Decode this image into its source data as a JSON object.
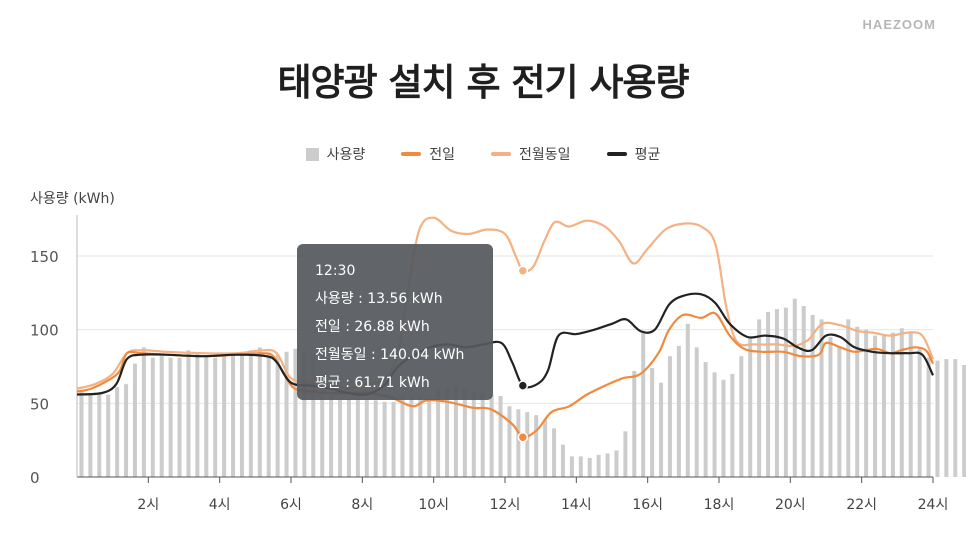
{
  "brand": "HAEZOOM",
  "colors": {
    "bar": "#cccccc",
    "yesterday": "#f08a3e",
    "last_month": "#f4b184",
    "average": "#222222",
    "grid": "#e6e6e6",
    "tooltip_bg": "#55585c"
  },
  "legend": [
    {
      "label": "사용량",
      "kind": "bar",
      "color": "#cccccc"
    },
    {
      "label": "전일",
      "kind": "line",
      "color": "#f08a3e"
    },
    {
      "label": "전월동일",
      "kind": "line",
      "color": "#f4b184"
    },
    {
      "label": "평균",
      "kind": "line",
      "color": "#222222"
    }
  ],
  "tooltip": {
    "time": "12:30",
    "usage": "사용량 : 13.56 kWh",
    "yesterday": "전일 : 26.88 kWh",
    "last_month": "전월동일 : 140.04 kWh",
    "average": "평균 : 61.71 kWh"
  },
  "chart_data": {
    "type": "bar",
    "title": "태양광 설치 후 전기 사용량",
    "ylabel": "사용량 (kWh)",
    "ylim": [
      0,
      175
    ],
    "y_ticks": [
      0,
      50,
      100,
      150
    ],
    "x_range": [
      0,
      24
    ],
    "x_ticks": [
      2,
      4,
      6,
      8,
      10,
      12,
      14,
      16,
      18,
      20,
      22,
      24
    ],
    "x_tick_labels": [
      "2시",
      "4시",
      "6시",
      "8시",
      "10시",
      "12시",
      "14시",
      "16시",
      "18시",
      "20시",
      "22시",
      "24시"
    ],
    "grid": true,
    "legend_position": "top-center",
    "bar_interval_hours": 0.25,
    "series": [
      {
        "name": "사용량",
        "type": "bar",
        "values": [
          58,
          57,
          56,
          56,
          61,
          63,
          77,
          88,
          81,
          82,
          81,
          81,
          86,
          84,
          82,
          81,
          82,
          83,
          85,
          86,
          88,
          84,
          83,
          85,
          87,
          85,
          83,
          62,
          55,
          53,
          53,
          53,
          53,
          52,
          51,
          51,
          56,
          55,
          54,
          53,
          60,
          61,
          62,
          60,
          58,
          57,
          56,
          55,
          48,
          46,
          44,
          42,
          39,
          33,
          22,
          14,
          14,
          13,
          15,
          16,
          18,
          31,
          72,
          98,
          74,
          64,
          82,
          89,
          104,
          88,
          78,
          71,
          66,
          70,
          82,
          95,
          107,
          112,
          114,
          115,
          121,
          116,
          110,
          107,
          95,
          88,
          107,
          102,
          100,
          96,
          96,
          98,
          101,
          99,
          88,
          81,
          79,
          80,
          80,
          76,
          90,
          86,
          87,
          85,
          87,
          86,
          88,
          90,
          91,
          89,
          89,
          85,
          84,
          82,
          78,
          76
        ]
      },
      {
        "name": "전일",
        "type": "line",
        "points": [
          [
            0,
            58
          ],
          [
            0.4,
            60
          ],
          [
            0.9,
            66
          ],
          [
            1.2,
            72
          ],
          [
            1.4,
            84
          ],
          [
            1.8,
            84
          ],
          [
            2.5,
            83
          ],
          [
            3.5,
            82
          ],
          [
            4.5,
            83
          ],
          [
            5.2,
            84
          ],
          [
            5.5,
            82
          ],
          [
            5.8,
            70
          ],
          [
            6.1,
            60
          ],
          [
            6.6,
            58
          ],
          [
            7.1,
            57
          ],
          [
            7.6,
            57
          ],
          [
            8.2,
            57
          ],
          [
            8.8,
            54
          ],
          [
            9.4,
            48
          ],
          [
            9.8,
            52
          ],
          [
            10.4,
            51
          ],
          [
            11.1,
            47
          ],
          [
            11.6,
            46
          ],
          [
            12.2,
            36
          ],
          [
            12.5,
            27
          ],
          [
            12.9,
            32
          ],
          [
            13.3,
            44
          ],
          [
            13.8,
            48
          ],
          [
            14.3,
            56
          ],
          [
            14.8,
            62
          ],
          [
            15.3,
            67
          ],
          [
            15.8,
            70
          ],
          [
            16.3,
            84
          ],
          [
            16.6,
            100
          ],
          [
            17.0,
            110
          ],
          [
            17.5,
            108
          ],
          [
            17.9,
            111
          ],
          [
            18.3,
            96
          ],
          [
            18.7,
            87
          ],
          [
            19.2,
            85
          ],
          [
            19.8,
            85
          ],
          [
            20.3,
            82
          ],
          [
            20.8,
            83
          ],
          [
            21.0,
            91
          ],
          [
            21.4,
            88
          ],
          [
            21.8,
            85
          ],
          [
            22.4,
            87
          ],
          [
            22.8,
            84
          ],
          [
            23.1,
            86
          ],
          [
            23.5,
            88
          ],
          [
            23.8,
            86
          ],
          [
            24,
            77
          ]
        ]
      },
      {
        "name": "전월동일",
        "type": "line",
        "points": [
          [
            0,
            60
          ],
          [
            0.5,
            63
          ],
          [
            1.0,
            70
          ],
          [
            1.4,
            84
          ],
          [
            1.8,
            86
          ],
          [
            2.5,
            85
          ],
          [
            3.5,
            84
          ],
          [
            4.5,
            84
          ],
          [
            5.2,
            86
          ],
          [
            5.6,
            84
          ],
          [
            6.0,
            67
          ],
          [
            6.6,
            64
          ],
          [
            7.1,
            62
          ],
          [
            7.6,
            60
          ],
          [
            8.1,
            63
          ],
          [
            8.6,
            66
          ],
          [
            9.0,
            84
          ],
          [
            9.3,
            130
          ],
          [
            9.6,
            168
          ],
          [
            10.0,
            176
          ],
          [
            10.5,
            167
          ],
          [
            11.0,
            165
          ],
          [
            11.5,
            168
          ],
          [
            12.0,
            165
          ],
          [
            12.3,
            150
          ],
          [
            12.5,
            140
          ],
          [
            12.8,
            143
          ],
          [
            13.1,
            160
          ],
          [
            13.4,
            173
          ],
          [
            13.8,
            170
          ],
          [
            14.3,
            174
          ],
          [
            14.8,
            170
          ],
          [
            15.2,
            160
          ],
          [
            15.6,
            145
          ],
          [
            16.0,
            155
          ],
          [
            16.5,
            168
          ],
          [
            17.0,
            172
          ],
          [
            17.5,
            170
          ],
          [
            17.9,
            158
          ],
          [
            18.2,
            116
          ],
          [
            18.5,
            92
          ],
          [
            19.0,
            90
          ],
          [
            19.6,
            90
          ],
          [
            20.1,
            89
          ],
          [
            20.5,
            93
          ],
          [
            20.9,
            104
          ],
          [
            21.4,
            103
          ],
          [
            21.9,
            99
          ],
          [
            22.3,
            98
          ],
          [
            22.8,
            96
          ],
          [
            23.3,
            98
          ],
          [
            23.7,
            96
          ],
          [
            24,
            80
          ]
        ]
      },
      {
        "name": "평균",
        "type": "line",
        "points": [
          [
            0,
            56
          ],
          [
            0.7,
            57
          ],
          [
            1.1,
            63
          ],
          [
            1.4,
            80
          ],
          [
            1.8,
            83
          ],
          [
            2.5,
            83
          ],
          [
            3.5,
            82
          ],
          [
            4.5,
            83
          ],
          [
            5.3,
            82
          ],
          [
            5.6,
            78
          ],
          [
            6.0,
            64
          ],
          [
            6.6,
            62
          ],
          [
            7.1,
            60
          ],
          [
            7.6,
            57
          ],
          [
            8.1,
            56
          ],
          [
            8.6,
            62
          ],
          [
            9.0,
            75
          ],
          [
            9.4,
            82
          ],
          [
            9.9,
            88
          ],
          [
            10.4,
            90
          ],
          [
            10.9,
            88
          ],
          [
            11.4,
            90
          ],
          [
            11.9,
            91
          ],
          [
            12.2,
            78
          ],
          [
            12.5,
            62
          ],
          [
            12.9,
            63
          ],
          [
            13.2,
            72
          ],
          [
            13.5,
            96
          ],
          [
            14.0,
            97
          ],
          [
            14.5,
            100
          ],
          [
            15.0,
            104
          ],
          [
            15.4,
            107
          ],
          [
            15.8,
            99
          ],
          [
            16.2,
            100
          ],
          [
            16.6,
            117
          ],
          [
            17.0,
            123
          ],
          [
            17.5,
            124
          ],
          [
            17.9,
            118
          ],
          [
            18.3,
            104
          ],
          [
            18.8,
            95
          ],
          [
            19.3,
            96
          ],
          [
            19.8,
            94
          ],
          [
            20.2,
            88
          ],
          [
            20.6,
            86
          ],
          [
            21.0,
            96
          ],
          [
            21.4,
            95
          ],
          [
            21.8,
            88
          ],
          [
            22.3,
            85
          ],
          [
            22.8,
            84
          ],
          [
            23.3,
            84
          ],
          [
            23.7,
            83
          ],
          [
            24,
            69
          ]
        ]
      }
    ],
    "highlight": {
      "x": 12.5,
      "markers": [
        27,
        140,
        62
      ]
    }
  }
}
